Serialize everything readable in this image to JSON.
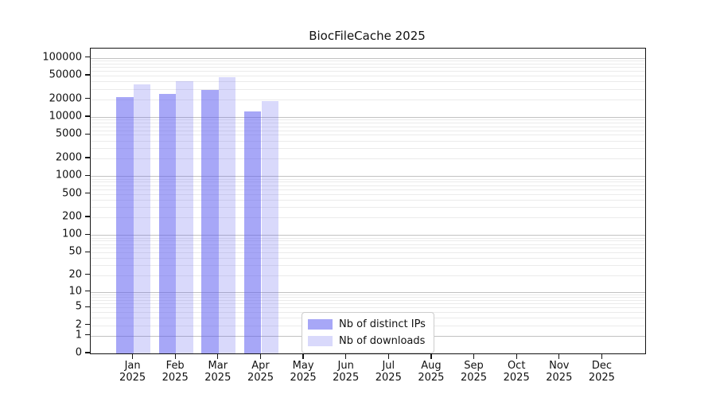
{
  "title": "BiocFileCache 2025",
  "colors": {
    "bar_distinct_ips": "rgba(95,95,240,0.55)",
    "bar_downloads": "rgba(95,95,240,0.24)",
    "grid_minor": "#ebebeb",
    "grid_major": "#c2c2c2",
    "axis": "#141414"
  },
  "chart_data": {
    "type": "bar",
    "title": "BiocFileCache 2025",
    "categories": [
      {
        "month": "Jan",
        "year": "2025"
      },
      {
        "month": "Feb",
        "year": "2025"
      },
      {
        "month": "Mar",
        "year": "2025"
      },
      {
        "month": "Apr",
        "year": "2025"
      },
      {
        "month": "May",
        "year": "2025"
      },
      {
        "month": "Jun",
        "year": "2025"
      },
      {
        "month": "Jul",
        "year": "2025"
      },
      {
        "month": "Aug",
        "year": "2025"
      },
      {
        "month": "Sep",
        "year": "2025"
      },
      {
        "month": "Oct",
        "year": "2025"
      },
      {
        "month": "Nov",
        "year": "2025"
      },
      {
        "month": "Dec",
        "year": "2025"
      }
    ],
    "series": [
      {
        "name": "Nb of distinct IPs",
        "values": [
          22000,
          24500,
          28500,
          12600,
          0,
          0,
          0,
          0,
          0,
          0,
          0,
          0
        ]
      },
      {
        "name": "Nb of downloads",
        "values": [
          36000,
          40000,
          47000,
          18500,
          0,
          0,
          0,
          0,
          0,
          0,
          0,
          0
        ]
      }
    ],
    "yticks": [
      0,
      1,
      2,
      5,
      10,
      20,
      50,
      100,
      200,
      500,
      1000,
      2000,
      5000,
      10000,
      20000,
      50000,
      100000
    ],
    "yscale": "log1p",
    "ylim": [
      0,
      144000
    ],
    "xlabel": "",
    "ylabel": "",
    "grid": "horizontal",
    "legend_position": "inside lower-center-left"
  }
}
